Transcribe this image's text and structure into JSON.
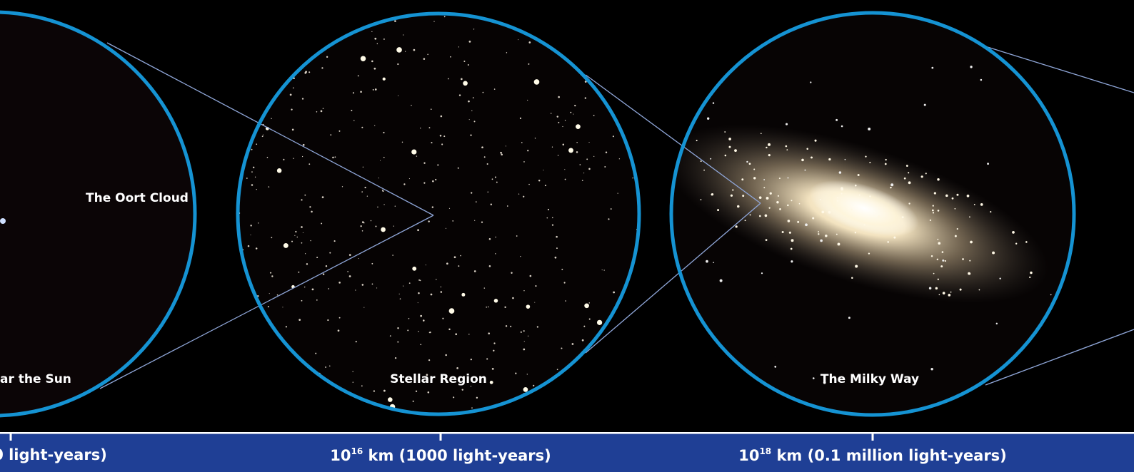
{
  "panels": [
    {
      "label": "The Oort Cloud"
    },
    {
      "label": "ar the Sun"
    },
    {
      "label": "Stellar Region"
    },
    {
      "label": "The Milky Way"
    }
  ],
  "scale": [
    {
      "text": "0 light-years)"
    },
    {
      "base": "10",
      "exponent": "16",
      "text": " km (1000 light-years)"
    },
    {
      "base": "10",
      "exponent": "18",
      "text": " km (0.1 million light-years)"
    }
  ]
}
